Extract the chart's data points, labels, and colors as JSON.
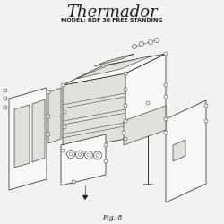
{
  "title": "Thermador",
  "subtitle": "MODEL: RDF 30 FREE STANDING",
  "caption": "Fig. 8",
  "bg_color": "#f2f2f0",
  "line_color": "#1a1a1a",
  "fill_light": "#e0e0dc",
  "fill_white": "#f8f8f6",
  "title_fontsize": 13,
  "subtitle_fontsize": 4.5,
  "caption_fontsize": 5.5,
  "fig_width": 2.5,
  "fig_height": 2.5,
  "dpi": 100
}
